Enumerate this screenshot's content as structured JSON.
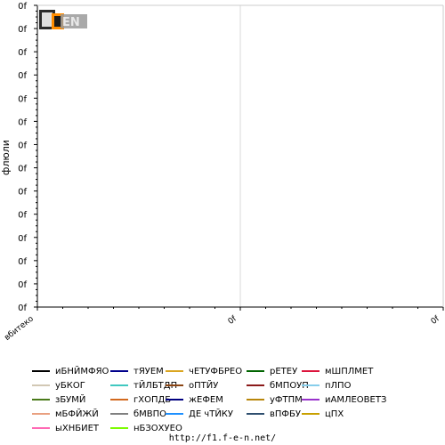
{
  "chart_data": {
    "type": "line",
    "title": "",
    "xlabel": "",
    "ylabel": "флюли",
    "y_tick_labels": [
      "0f",
      "0f",
      "0f",
      "0f",
      "0f",
      "0f",
      "0f",
      "0f",
      "0f",
      "0f",
      "0f",
      "0f",
      "0f",
      "0f"
    ],
    "x_tick_labels": [
      "вбитеко",
      "0f",
      "0f"
    ],
    "grid": true,
    "legend_position": "bottom",
    "series": [
      {
        "name": "иБНЙМФЯО",
        "color": "#000000",
        "values": []
      },
      {
        "name": "тЯУЕМ",
        "color": "#00008b",
        "values": []
      },
      {
        "name": "чЕТУФБРЕО",
        "color": "#daa520",
        "values": []
      },
      {
        "name": "рЕТЕУ",
        "color": "#006400",
        "values": []
      },
      {
        "name": "мШПЛМЕТ",
        "color": "#dc143c",
        "values": []
      },
      {
        "name": "уБКОГ",
        "color": "#d2c8b4",
        "values": []
      },
      {
        "name": "тЙЛБТДП",
        "color": "#40c8c0",
        "values": []
      },
      {
        "name": "оПТЙУ",
        "color": "#8b4513",
        "values": []
      },
      {
        "name": "бМПОУП",
        "color": "#8b1a1a",
        "values": []
      },
      {
        "name": "пЛПО",
        "color": "#87ceeb",
        "values": []
      },
      {
        "name": "зБУМЙ",
        "color": "#4a7a1a",
        "values": []
      },
      {
        "name": "гХОПДБ",
        "color": "#d2691e",
        "values": []
      },
      {
        "name": "жЕФЕМ",
        "color": "#000080",
        "values": []
      },
      {
        "name": "уФТПМ",
        "color": "#b8860b",
        "values": []
      },
      {
        "name": "иАМЛЕОВЕТЗ",
        "color": "#9932cc",
        "values": []
      },
      {
        "name": "мБФЙЖЙ",
        "color": "#e9a080",
        "values": []
      },
      {
        "name": "бМВПО",
        "color": "#808080",
        "values": []
      },
      {
        "name": "ДЕ чТЙКУ",
        "color": "#1e90ff",
        "values": []
      },
      {
        "name": "вПФБУ",
        "color": "#2f4f6f",
        "values": []
      },
      {
        "name": "цПХ",
        "color": "#c8a000",
        "values": []
      },
      {
        "name": "ыХНБИЕТ",
        "color": "#ff69b4",
        "values": []
      },
      {
        "name": "нБЗОХУЕО",
        "color": "#7cfc00",
        "values": []
      }
    ]
  },
  "logo": {
    "text": "F1EN",
    "colors": {
      "primary": "#333333",
      "accent": "#ff8c00"
    }
  },
  "footer": {
    "url": "http://f1.f-e-n.net/"
  }
}
